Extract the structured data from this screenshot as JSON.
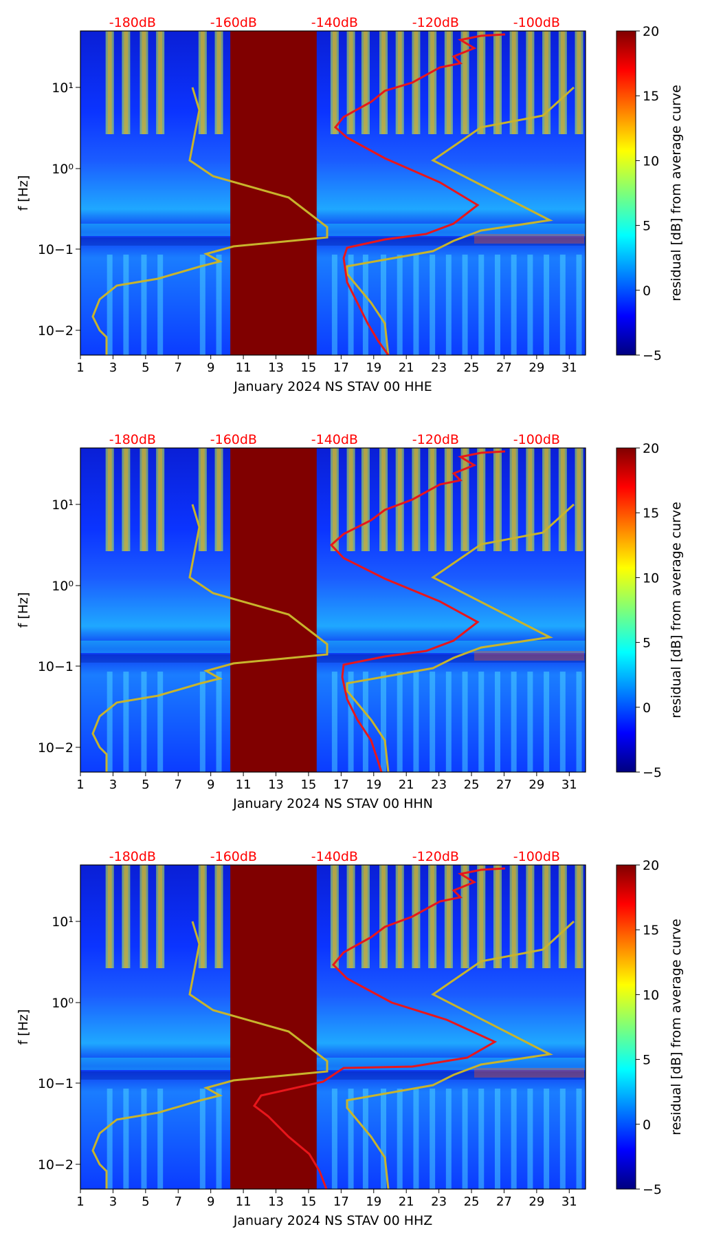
{
  "chart_data": [
    {
      "type": "heatmap",
      "title": "",
      "xlabel": "January 2024 NS STAV 00 HHE",
      "ylabel": "f [Hz]",
      "x_ticks": [
        "1",
        "3",
        "5",
        "7",
        "9",
        "11",
        "13",
        "15",
        "17",
        "19",
        "21",
        "23",
        "25",
        "27",
        "29",
        "31"
      ],
      "xlim": [
        1,
        32
      ],
      "y_ticks": [
        "10−2",
        "10−1",
        "10⁰",
        "10¹"
      ],
      "ylim_hz": [
        0.005,
        50
      ],
      "top_ticks": [
        "-180dB",
        "-160dB",
        "-140dB",
        "-120dB",
        "-100dB"
      ],
      "colorbar": {
        "label": "residual [dB] from average curve",
        "ticks": [
          "20",
          "15",
          "10",
          "5",
          "0",
          "−5"
        ],
        "range": [
          -5,
          20
        ],
        "colormap": "jet"
      },
      "gap_days": [
        10.2,
        15.5
      ],
      "annotation_lines": [
        {
          "name": "red-curve",
          "color": "#e8161b"
        },
        {
          "name": "olive-curve",
          "color": "#c8b42c"
        }
      ]
    },
    {
      "type": "heatmap",
      "title": "",
      "xlabel": "January 2024 NS STAV 00 HHN",
      "ylabel": "f [Hz]",
      "x_ticks": [
        "1",
        "3",
        "5",
        "7",
        "9",
        "11",
        "13",
        "15",
        "17",
        "19",
        "21",
        "23",
        "25",
        "27",
        "29",
        "31"
      ],
      "xlim": [
        1,
        32
      ],
      "y_ticks": [
        "10−2",
        "10−1",
        "10⁰",
        "10¹"
      ],
      "ylim_hz": [
        0.005,
        50
      ],
      "top_ticks": [
        "-180dB",
        "-160dB",
        "-140dB",
        "-120dB",
        "-100dB"
      ],
      "colorbar": {
        "label": "residual [dB] from average curve",
        "ticks": [
          "20",
          "15",
          "10",
          "5",
          "0",
          "−5"
        ],
        "range": [
          -5,
          20
        ],
        "colormap": "jet"
      },
      "gap_days": [
        10.2,
        15.5
      ],
      "annotation_lines": [
        {
          "name": "red-curve",
          "color": "#e8161b"
        },
        {
          "name": "olive-curve",
          "color": "#c8b42c"
        }
      ]
    },
    {
      "type": "heatmap",
      "title": "",
      "xlabel": "January 2024 NS STAV 00 HHZ",
      "ylabel": "f [Hz]",
      "x_ticks": [
        "1",
        "3",
        "5",
        "7",
        "9",
        "11",
        "13",
        "15",
        "17",
        "19",
        "21",
        "23",
        "25",
        "27",
        "29",
        "31"
      ],
      "xlim": [
        1,
        32
      ],
      "y_ticks": [
        "10−2",
        "10−1",
        "10⁰",
        "10¹"
      ],
      "ylim_hz": [
        0.005,
        50
      ],
      "top_ticks": [
        "-180dB",
        "-160dB",
        "-140dB",
        "-120dB",
        "-100dB"
      ],
      "colorbar": {
        "label": "residual [dB] from average curve",
        "ticks": [
          "20",
          "15",
          "10",
          "5",
          "0",
          "−5"
        ],
        "range": [
          -5,
          20
        ],
        "colormap": "jet"
      },
      "gap_days": [
        10.2,
        15.5
      ],
      "annotation_lines": [
        {
          "name": "red-curve",
          "color": "#e8161b"
        },
        {
          "name": "olive-curve",
          "color": "#c8b42c"
        }
      ]
    }
  ]
}
